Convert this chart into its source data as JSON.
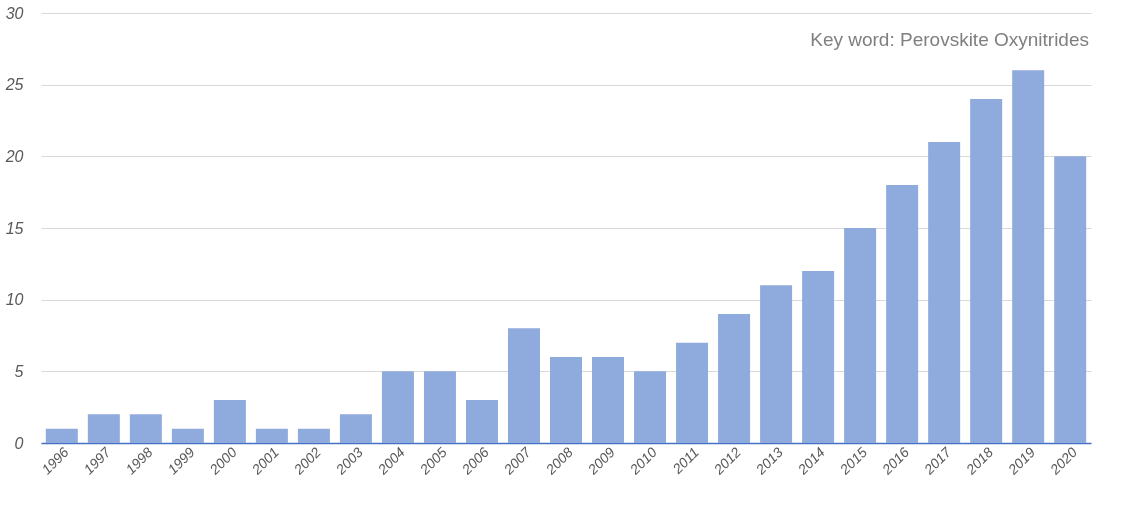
{
  "chart_data": {
    "type": "bar",
    "categories": [
      "1996",
      "1997",
      "1998",
      "1999",
      "2000",
      "2001",
      "2002",
      "2003",
      "2004",
      "2005",
      "2006",
      "2007",
      "2008",
      "2009",
      "2010",
      "2011",
      "2012",
      "2013",
      "2014",
      "2015",
      "2016",
      "2017",
      "2018",
      "2019",
      "2020"
    ],
    "values": [
      1,
      2,
      2,
      1,
      3,
      1,
      1,
      2,
      5,
      5,
      3,
      8,
      6,
      6,
      5,
      7,
      9,
      11,
      12,
      15,
      18,
      21,
      24,
      26,
      20
    ],
    "color": "#8faadc",
    "ylim": [
      0,
      30
    ],
    "yticks": [
      0,
      5,
      10,
      15,
      20,
      25,
      30
    ],
    "grid": "y",
    "annotations": [
      "Key word: Perovskite Oxynitrides"
    ]
  }
}
